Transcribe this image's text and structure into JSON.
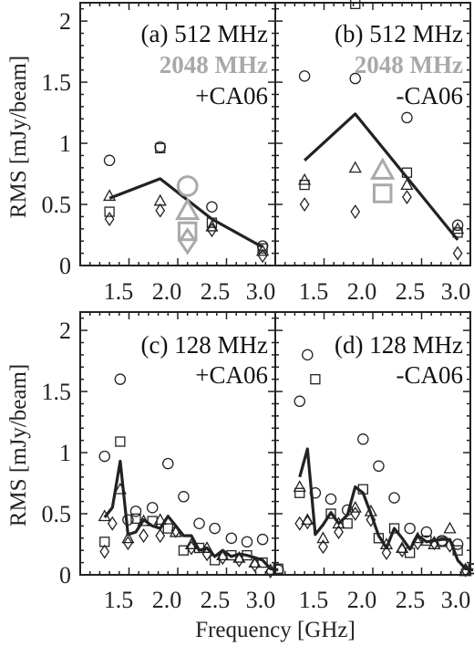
{
  "chart_data": [
    {
      "type": "scatter",
      "panel": "(a)",
      "labels": [
        "(a) 512 MHz",
        "2048 MHz",
        "+CA06"
      ],
      "ylabel": "RMS [mJy/beam]",
      "xlim": [
        1.0,
        3.0
      ],
      "ylim": [
        0,
        2.15
      ],
      "xticks": [
        "1.5",
        "2.0",
        "2.5",
        "3.0"
      ],
      "yticks": [
        "0",
        "0.5",
        "1",
        "1.5",
        "2"
      ],
      "series": [
        {
          "marker": "line",
          "color": "#222222",
          "x": [
            1.3,
            1.82,
            2.35,
            2.87
          ],
          "y": [
            0.55,
            0.71,
            0.38,
            0.15
          ]
        },
        {
          "marker": "circle",
          "color": "#222222",
          "x": [
            1.3,
            1.82,
            2.35,
            2.87
          ],
          "y": [
            0.86,
            0.97,
            0.48,
            0.16
          ]
        },
        {
          "marker": "square",
          "color": "#222222",
          "x": [
            1.3,
            1.82,
            2.35,
            2.87
          ],
          "y": [
            0.44,
            0.96,
            0.35,
            0.14
          ]
        },
        {
          "marker": "triangle",
          "color": "#222222",
          "x": [
            1.3,
            1.82,
            2.35,
            2.87
          ],
          "y": [
            0.57,
            0.53,
            0.32,
            0.12
          ]
        },
        {
          "marker": "diamond",
          "color": "#222222",
          "x": [
            1.3,
            1.82,
            2.35,
            2.87
          ],
          "y": [
            0.38,
            0.45,
            0.29,
            0.08
          ]
        },
        {
          "marker": "circle",
          "color": "#a9a9a9",
          "size": "large",
          "x": [
            2.1
          ],
          "y": [
            0.65
          ]
        },
        {
          "marker": "triangle",
          "color": "#a9a9a9",
          "size": "large",
          "x": [
            2.1
          ],
          "y": [
            0.45
          ]
        },
        {
          "marker": "square",
          "color": "#a9a9a9",
          "size": "large",
          "x": [
            2.1
          ],
          "y": [
            0.28
          ]
        },
        {
          "marker": "diamond",
          "color": "#a9a9a9",
          "size": "large",
          "x": [
            2.1
          ],
          "y": [
            0.2
          ]
        }
      ]
    },
    {
      "type": "scatter",
      "panel": "(b)",
      "labels": [
        "(b) 512 MHz",
        "2048 MHz",
        "-CA06"
      ],
      "xlim": [
        1.0,
        3.0
      ],
      "ylim": [
        0,
        2.15
      ],
      "xticks": [
        "1.5",
        "2.0",
        "2.5",
        "3.0"
      ],
      "series": [
        {
          "marker": "line",
          "color": "#222222",
          "x": [
            1.3,
            1.82,
            2.35,
            2.87
          ],
          "y": [
            0.86,
            1.24,
            0.72,
            0.21
          ]
        },
        {
          "marker": "circle",
          "color": "#222222",
          "x": [
            1.3,
            1.82,
            2.35,
            2.87
          ],
          "y": [
            1.55,
            1.53,
            1.21,
            0.33
          ]
        },
        {
          "marker": "square",
          "color": "#222222",
          "x": [
            1.3,
            1.82,
            2.35,
            2.87
          ],
          "y": [
            0.66,
            2.14,
            0.76,
            0.27
          ]
        },
        {
          "marker": "triangle",
          "color": "#222222",
          "x": [
            1.3,
            1.82,
            2.35,
            2.87
          ],
          "y": [
            0.7,
            0.8,
            0.66,
            0.3
          ]
        },
        {
          "marker": "diamond",
          "color": "#222222",
          "x": [
            1.3,
            1.82,
            2.35,
            2.87
          ],
          "y": [
            0.5,
            0.44,
            0.56,
            0.1
          ]
        },
        {
          "marker": "triangle",
          "color": "#a9a9a9",
          "size": "large",
          "x": [
            2.1
          ],
          "y": [
            0.78
          ]
        },
        {
          "marker": "square",
          "color": "#a9a9a9",
          "size": "large",
          "x": [
            2.1
          ],
          "y": [
            0.59
          ]
        }
      ]
    },
    {
      "type": "scatter",
      "panel": "(c)",
      "labels": [
        "(c) 128 MHz",
        "+CA06"
      ],
      "ylabel": "RMS [mJy/beam]",
      "xlim": [
        1.0,
        3.0
      ],
      "ylim": [
        0,
        2.15
      ],
      "xticks": [
        "1.5",
        "2.0",
        "2.5",
        "3.0"
      ],
      "yticks": [
        "0",
        "0.5",
        "1",
        "1.5",
        "2"
      ],
      "series": [
        {
          "marker": "line",
          "color": "#222222",
          "x": [
            1.25,
            1.33,
            1.41,
            1.49,
            1.57,
            1.65,
            1.74,
            1.82,
            1.9,
            1.98,
            2.06,
            2.14,
            2.22,
            2.3,
            2.38,
            2.46,
            2.55,
            2.63,
            2.71,
            2.79,
            2.87,
            2.95,
            3.03
          ],
          "y": [
            0.47,
            0.55,
            0.93,
            0.33,
            0.35,
            0.45,
            0.4,
            0.38,
            0.48,
            0.4,
            0.32,
            0.32,
            0.2,
            0.22,
            0.15,
            0.2,
            0.15,
            0.17,
            0.16,
            0.14,
            0.12,
            0.05,
            0.04
          ]
        },
        {
          "marker": "circle",
          "color": "#222222",
          "x": [
            1.25,
            1.41,
            1.49,
            1.57,
            1.74,
            1.9,
            2.06,
            2.22,
            2.38,
            2.55,
            2.71,
            2.87,
            3.03
          ],
          "y": [
            0.97,
            1.6,
            0.45,
            0.52,
            0.55,
            0.91,
            0.64,
            0.42,
            0.38,
            0.3,
            0.27,
            0.29,
            0.04
          ]
        },
        {
          "marker": "square",
          "color": "#222222",
          "x": [
            1.25,
            1.41,
            1.57,
            1.74,
            1.9,
            2.06,
            2.22,
            2.38,
            2.55,
            2.71,
            2.87,
            3.03
          ],
          "y": [
            0.27,
            1.09,
            0.46,
            0.44,
            0.38,
            0.2,
            0.22,
            0.12,
            0.16,
            0.16,
            0.1,
            0.05
          ]
        },
        {
          "marker": "triangle",
          "color": "#222222",
          "x": [
            1.25,
            1.41,
            1.49,
            1.65,
            1.82,
            1.98,
            2.14,
            2.3,
            2.46,
            2.63,
            2.79,
            2.95
          ],
          "y": [
            0.48,
            0.7,
            0.3,
            0.44,
            0.45,
            0.35,
            0.25,
            0.22,
            0.16,
            0.14,
            0.1,
            0.04
          ]
        },
        {
          "marker": "diamond",
          "color": "#222222",
          "x": [
            1.25,
            1.33,
            1.49,
            1.65,
            1.82,
            1.98,
            2.14,
            2.3,
            2.46,
            2.63,
            2.79,
            2.95
          ],
          "y": [
            0.19,
            0.42,
            0.26,
            0.32,
            0.32,
            0.36,
            0.22,
            0.17,
            0.14,
            0.12,
            0.08,
            0.03
          ]
        }
      ]
    },
    {
      "type": "scatter",
      "panel": "(d)",
      "labels": [
        "(d) 128 MHz",
        "-CA06"
      ],
      "xlim": [
        1.0,
        3.0
      ],
      "ylim": [
        0,
        2.15
      ],
      "xticks": [
        "1.5",
        "2.0",
        "2.5",
        "3.0"
      ],
      "series": [
        {
          "marker": "line",
          "color": "#222222",
          "x": [
            1.25,
            1.33,
            1.41,
            1.49,
            1.57,
            1.65,
            1.74,
            1.82,
            1.9,
            1.98,
            2.06,
            2.14,
            2.22,
            2.3,
            2.38,
            2.46,
            2.55,
            2.63,
            2.71,
            2.79,
            2.87,
            2.95,
            3.03
          ],
          "y": [
            0.8,
            1.03,
            0.33,
            0.41,
            0.51,
            0.42,
            0.49,
            0.72,
            0.67,
            0.5,
            0.32,
            0.22,
            0.38,
            0.3,
            0.21,
            0.32,
            0.27,
            0.28,
            0.29,
            0.29,
            0.12,
            0.05,
            0.04
          ]
        },
        {
          "marker": "circle",
          "color": "#222222",
          "x": [
            1.25,
            1.33,
            1.41,
            1.57,
            1.74,
            1.9,
            2.06,
            2.22,
            2.38,
            2.55,
            2.71,
            2.87,
            3.03
          ],
          "y": [
            1.42,
            1.8,
            0.67,
            0.62,
            0.53,
            1.11,
            0.89,
            0.63,
            0.38,
            0.35,
            0.28,
            0.25,
            0.05
          ]
        },
        {
          "marker": "square",
          "color": "#222222",
          "x": [
            1.25,
            1.41,
            1.57,
            1.74,
            1.9,
            2.06,
            2.22,
            2.38,
            2.55,
            2.71,
            2.87,
            3.03
          ],
          "y": [
            0.67,
            1.6,
            0.5,
            0.42,
            0.7,
            0.3,
            0.38,
            0.18,
            0.28,
            0.27,
            0.2,
            0.05
          ]
        },
        {
          "marker": "triangle",
          "color": "#222222",
          "x": [
            1.25,
            1.33,
            1.49,
            1.65,
            1.82,
            1.98,
            2.14,
            2.3,
            2.46,
            2.63,
            2.79,
            2.95
          ],
          "y": [
            0.72,
            0.45,
            0.3,
            0.42,
            0.55,
            0.52,
            0.25,
            0.22,
            0.3,
            0.25,
            0.38,
            0.03
          ]
        },
        {
          "marker": "diamond",
          "color": "#222222",
          "x": [
            1.25,
            1.33,
            1.49,
            1.65,
            1.82,
            1.98,
            2.14,
            2.3,
            2.46,
            2.63,
            2.79,
            2.95
          ],
          "y": [
            0.42,
            0.43,
            0.23,
            0.35,
            0.5,
            0.45,
            0.18,
            0.2,
            0.26,
            0.26,
            0.24,
            0.04
          ]
        }
      ]
    }
  ],
  "xlabel": "Frequency [GHz]"
}
